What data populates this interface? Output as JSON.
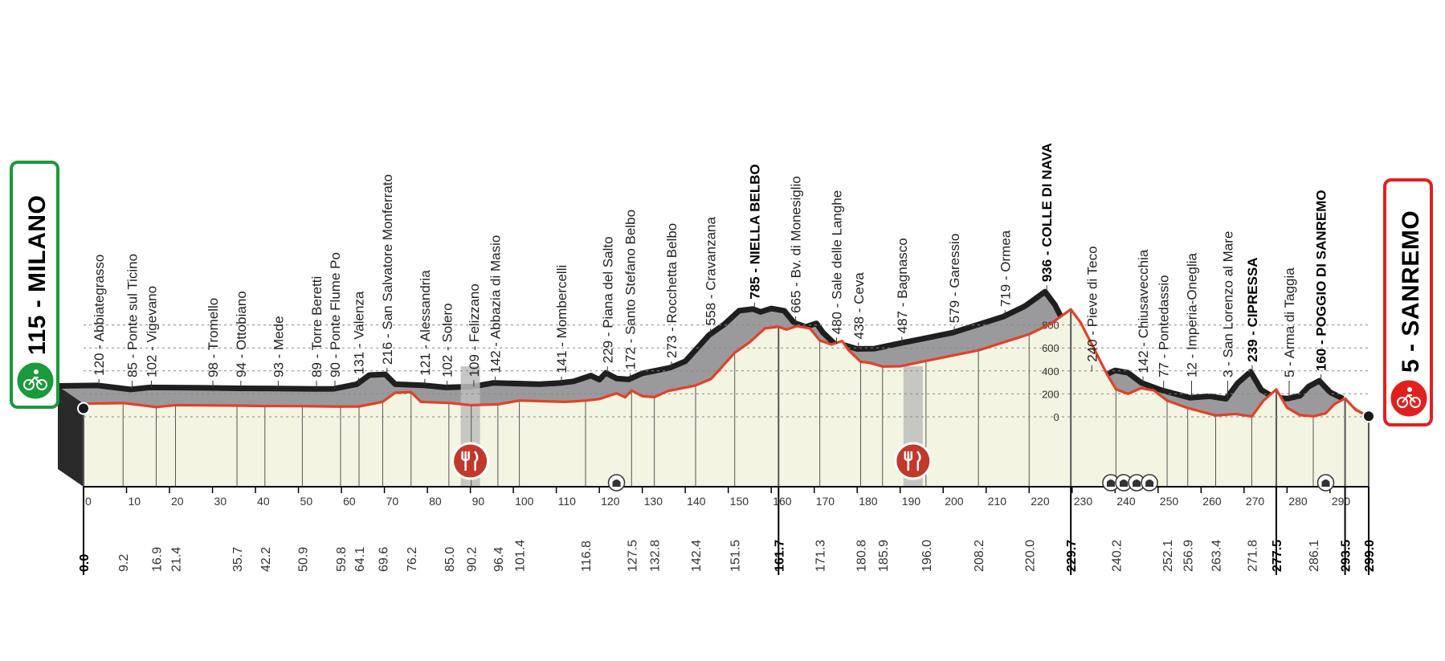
{
  "chart_data": {
    "type": "area",
    "title": "",
    "xlabel": "",
    "ylabel": "",
    "x_unit": "km",
    "y_unit": "m",
    "xlim": [
      0,
      299
    ],
    "ylim": [
      0,
      900
    ],
    "km_axis_ticks": [
      "0",
      "10",
      "20",
      "30",
      "40",
      "50",
      "60",
      "70",
      "80",
      "90",
      "100",
      "110",
      "120",
      "130",
      "140",
      "150",
      "160",
      "170",
      "180",
      "190",
      "200",
      "210",
      "220",
      "230",
      "240",
      "250",
      "260",
      "270",
      "280",
      "290"
    ],
    "altitude_axis_ticks": [
      "0",
      "200",
      "400",
      "600",
      "800"
    ],
    "start": {
      "altitude": "115",
      "name": "MILANO",
      "label": "115 - MILANO",
      "color": "#1a9a3a"
    },
    "finish": {
      "altitude": "5",
      "name": "SANREMO",
      "label": "5 - SANREMO",
      "color": "#e02020"
    },
    "waypoints": [
      {
        "km": 0.0,
        "km_label": "0.0",
        "alt": 115,
        "label": "",
        "major": true
      },
      {
        "km": 9.2,
        "km_label": "9.2",
        "alt": 120,
        "label": "120 - Abbiategrasso",
        "major": false
      },
      {
        "km": 16.9,
        "km_label": "16.9",
        "alt": 85,
        "label": "85 - Ponte sul Ticino",
        "major": false
      },
      {
        "km": 21.4,
        "km_label": "21.4",
        "alt": 102,
        "label": "102 - Vigevano",
        "major": false
      },
      {
        "km": 35.7,
        "km_label": "35.7",
        "alt": 98,
        "label": "98 - Tromello",
        "major": false
      },
      {
        "km": 42.2,
        "km_label": "42.2",
        "alt": 94,
        "label": "94 - Ottobiano",
        "major": false
      },
      {
        "km": 50.9,
        "km_label": "50.9",
        "alt": 93,
        "label": "93 - Mede",
        "major": false
      },
      {
        "km": 59.8,
        "km_label": "59.8",
        "alt": 89,
        "label": "89 - Torre Beretti",
        "major": false
      },
      {
        "km": 64.1,
        "km_label": "64.1",
        "alt": 90,
        "label": "90 - Ponte Flume Po",
        "major": false
      },
      {
        "km": 69.6,
        "km_label": "69.6",
        "alt": 131,
        "label": "131 - Valenza",
        "major": false
      },
      {
        "km": 76.2,
        "km_label": "76.2",
        "alt": 216,
        "label": "216 - San Salvatore Monferrato",
        "major": false
      },
      {
        "km": 85.0,
        "km_label": "85.0",
        "alt": 121,
        "label": "121 - Alessandria",
        "major": false
      },
      {
        "km": 90.2,
        "km_label": "90.2",
        "alt": 102,
        "label": "102 - Solero",
        "major": false
      },
      {
        "km": 96.4,
        "km_label": "96.4",
        "alt": 109,
        "label": "109 - Felizzano",
        "major": false
      },
      {
        "km": 101.4,
        "km_label": "101.4",
        "alt": 142,
        "label": "142 - Abbazia di Masio",
        "major": false
      },
      {
        "km": 116.8,
        "km_label": "116.8",
        "alt": 141,
        "label": "141 - Mombercelli",
        "major": false
      },
      {
        "km": 127.5,
        "km_label": "127.5",
        "alt": 229,
        "label": "229 - Piana del Salto",
        "major": false
      },
      {
        "km": 132.8,
        "km_label": "132.8",
        "alt": 172,
        "label": "172 - Santo Stefano Belbo",
        "major": false
      },
      {
        "km": 142.4,
        "km_label": "142.4",
        "alt": 273,
        "label": "273 - Rocchetta Belbo",
        "major": false
      },
      {
        "km": 151.5,
        "km_label": "151.5",
        "alt": 558,
        "label": "558 - Cravanzana",
        "major": false
      },
      {
        "km": 161.7,
        "km_label": "161.7",
        "alt": 785,
        "label": "785 - NIELLA BELBO",
        "major": true
      },
      {
        "km": 171.3,
        "km_label": "171.3",
        "alt": 665,
        "label": "665 - Bv. di Monesiglio",
        "major": false
      },
      {
        "km": 180.8,
        "km_label": "180.8",
        "alt": 480,
        "label": "480 - Sale delle Langhe",
        "major": false
      },
      {
        "km": 185.9,
        "km_label": "185.9",
        "alt": 438,
        "label": "438 - Ceva",
        "major": false
      },
      {
        "km": 196.0,
        "km_label": "196.0",
        "alt": 487,
        "label": "487 - Bagnasco",
        "major": false
      },
      {
        "km": 208.2,
        "km_label": "208.2",
        "alt": 579,
        "label": "579 - Garessio",
        "major": false
      },
      {
        "km": 220.0,
        "km_label": "220.0",
        "alt": 719,
        "label": "719 - Ormea",
        "major": false
      },
      {
        "km": 229.7,
        "km_label": "229.7",
        "alt": 936,
        "label": "936 - COLLE DI NAVA",
        "major": true
      },
      {
        "km": 240.2,
        "km_label": "240.2",
        "alt": 240,
        "label": "240 - Pieve di Teco",
        "major": false
      },
      {
        "km": 252.1,
        "km_label": "252.1",
        "alt": 142,
        "label": "142 - Chiusavecchia",
        "major": false
      },
      {
        "km": 256.9,
        "km_label": "256.9",
        "alt": 77,
        "label": "77 - Pontedassio",
        "major": false
      },
      {
        "km": 263.4,
        "km_label": "263.4",
        "alt": 12,
        "label": "12 - Imperia-Oneglia",
        "major": false
      },
      {
        "km": 271.8,
        "km_label": "271.8",
        "alt": 3,
        "label": "3 - San Lorenzo al Mare",
        "major": false
      },
      {
        "km": 277.5,
        "km_label": "277.5",
        "alt": 239,
        "label": "239 - CIPRESSA",
        "major": true
      },
      {
        "km": 286.1,
        "km_label": "286.1",
        "alt": 5,
        "label": "5 - Arma di Taggia",
        "major": false
      },
      {
        "km": 293.5,
        "km_label": "293.5",
        "alt": 160,
        "label": "160 - POGGIO DI SANREMO",
        "major": true
      },
      {
        "km": 299.0,
        "km_label": "299.0",
        "alt": 5,
        "label": "",
        "major": true
      }
    ],
    "profile": [
      [
        0,
        115
      ],
      [
        9.2,
        120
      ],
      [
        16.9,
        85
      ],
      [
        21.4,
        102
      ],
      [
        35.7,
        98
      ],
      [
        42.2,
        94
      ],
      [
        50.9,
        93
      ],
      [
        59.8,
        89
      ],
      [
        64.1,
        90
      ],
      [
        69.6,
        131
      ],
      [
        72.5,
        210
      ],
      [
        76.2,
        216
      ],
      [
        78.5,
        130
      ],
      [
        85,
        121
      ],
      [
        90.2,
        102
      ],
      [
        96.4,
        109
      ],
      [
        101.4,
        142
      ],
      [
        112,
        130
      ],
      [
        116.8,
        141
      ],
      [
        120,
        155
      ],
      [
        124,
        205
      ],
      [
        126,
        170
      ],
      [
        127.5,
        229
      ],
      [
        130,
        180
      ],
      [
        132.8,
        172
      ],
      [
        136,
        225
      ],
      [
        142.4,
        273
      ],
      [
        146,
        330
      ],
      [
        151.5,
        558
      ],
      [
        155,
        650
      ],
      [
        158.5,
        770
      ],
      [
        161.7,
        785
      ],
      [
        163.5,
        760
      ],
      [
        166,
        790
      ],
      [
        169,
        770
      ],
      [
        171.3,
        665
      ],
      [
        174,
        630
      ],
      [
        176.5,
        660
      ],
      [
        178,
        580
      ],
      [
        180.8,
        480
      ],
      [
        183,
        470
      ],
      [
        185.9,
        438
      ],
      [
        190,
        440
      ],
      [
        196,
        487
      ],
      [
        208.2,
        579
      ],
      [
        220,
        719
      ],
      [
        225,
        810
      ],
      [
        229.7,
        936
      ],
      [
        232,
        820
      ],
      [
        235,
        600
      ],
      [
        238,
        380
      ],
      [
        240.2,
        240
      ],
      [
        243,
        200
      ],
      [
        246,
        250
      ],
      [
        249,
        230
      ],
      [
        252.1,
        142
      ],
      [
        256.9,
        77
      ],
      [
        263.4,
        12
      ],
      [
        268,
        25
      ],
      [
        271.8,
        3
      ],
      [
        274.5,
        140
      ],
      [
        277.5,
        239
      ],
      [
        280,
        80
      ],
      [
        283,
        15
      ],
      [
        286.1,
        5
      ],
      [
        289,
        30
      ],
      [
        291,
        110
      ],
      [
        293.5,
        160
      ],
      [
        296,
        60
      ],
      [
        299,
        5
      ]
    ],
    "feed_zones_km": [
      90,
      193
    ],
    "tunnel_markers_km": [
      124,
      239,
      242,
      245,
      248,
      289
    ]
  }
}
